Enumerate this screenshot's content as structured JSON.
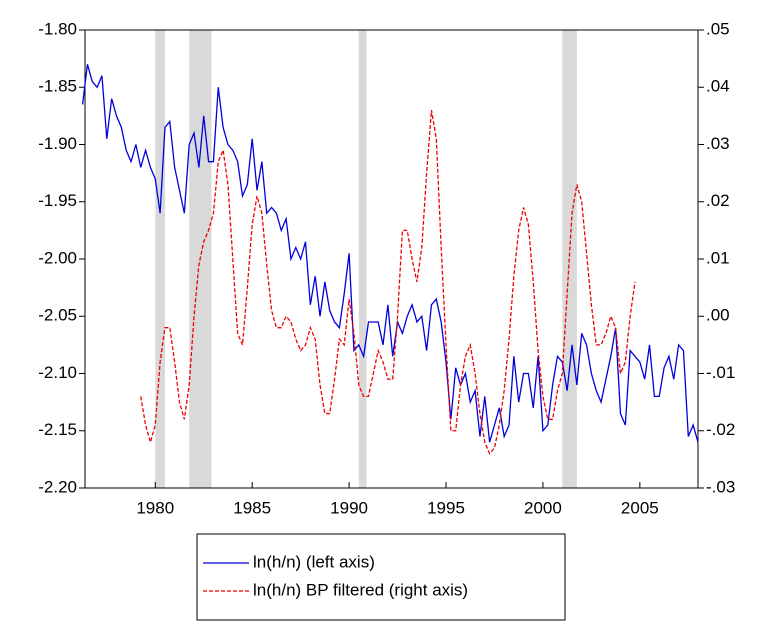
{
  "chart_data": {
    "type": "line",
    "x": [
      1976.25,
      1976.5,
      1976.75,
      1977,
      1977.25,
      1977.5,
      1977.75,
      1978,
      1978.25,
      1978.5,
      1978.75,
      1979,
      1979.25,
      1979.5,
      1979.75,
      1980,
      1980.25,
      1980.5,
      1980.75,
      1981,
      1981.25,
      1981.5,
      1981.75,
      1982,
      1982.25,
      1982.5,
      1982.75,
      1983,
      1983.25,
      1983.5,
      1983.75,
      1984,
      1984.25,
      1984.5,
      1984.75,
      1985,
      1985.25,
      1985.5,
      1985.75,
      1986,
      1986.25,
      1986.5,
      1986.75,
      1987,
      1987.25,
      1987.5,
      1987.75,
      1988,
      1988.25,
      1988.5,
      1988.75,
      1989,
      1989.25,
      1989.5,
      1989.75,
      1990,
      1990.25,
      1990.5,
      1990.75,
      1991,
      1991.25,
      1991.5,
      1991.75,
      1992,
      1992.25,
      1992.5,
      1992.75,
      1993,
      1993.25,
      1993.5,
      1993.75,
      1994,
      1994.25,
      1994.5,
      1994.75,
      1995,
      1995.25,
      1995.5,
      1995.75,
      1996,
      1996.25,
      1996.5,
      1996.75,
      1997,
      1997.25,
      1997.5,
      1997.75,
      1998,
      1998.25,
      1998.5,
      1998.75,
      1999,
      1999.25,
      1999.5,
      1999.75,
      2000,
      2000.25,
      2000.5,
      2000.75,
      2001,
      2001.25,
      2001.5,
      2001.75,
      2002,
      2002.25,
      2002.5,
      2002.75,
      2003,
      2003.25,
      2003.5,
      2003.75,
      2004,
      2004.25,
      2004.5,
      2004.75,
      2005,
      2005.25,
      2005.5,
      2005.75,
      2006,
      2006.25,
      2006.5,
      2006.75,
      2007,
      2007.25,
      2007.5,
      2007.75,
      2008
    ],
    "series": [
      {
        "name": "ln(h/n) (left axis)",
        "color": "#0000dd",
        "dash": false,
        "axis": "y",
        "values": [
          -1.865,
          -1.83,
          -1.845,
          -1.85,
          -1.84,
          -1.895,
          -1.86,
          -1.875,
          -1.885,
          -1.905,
          -1.915,
          -1.9,
          -1.92,
          -1.905,
          -1.92,
          -1.93,
          -1.96,
          -1.885,
          -1.88,
          -1.92,
          -1.94,
          -1.96,
          -1.9,
          -1.89,
          -1.92,
          -1.875,
          -1.915,
          -1.915,
          -1.85,
          -1.885,
          -1.9,
          -1.905,
          -1.915,
          -1.945,
          -1.935,
          -1.895,
          -1.94,
          -1.915,
          -1.96,
          -1.955,
          -1.96,
          -1.975,
          -1.965,
          -2.0,
          -1.99,
          -2.0,
          -1.985,
          -2.04,
          -2.015,
          -2.05,
          -2.02,
          -2.045,
          -2.055,
          -2.06,
          -2.03,
          -1.995,
          -2.08,
          -2.075,
          -2.085,
          -2.055,
          -2.055,
          -2.055,
          -2.075,
          -2.04,
          -2.085,
          -2.055,
          -2.065,
          -2.05,
          -2.04,
          -2.055,
          -2.05,
          -2.08,
          -2.04,
          -2.035,
          -2.055,
          -2.09,
          -2.14,
          -2.095,
          -2.11,
          -2.1,
          -2.125,
          -2.115,
          -2.155,
          -2.12,
          -2.16,
          -2.145,
          -2.13,
          -2.155,
          -2.145,
          -2.085,
          -2.125,
          -2.1,
          -2.1,
          -2.13,
          -2.085,
          -2.15,
          -2.145,
          -2.11,
          -2.085,
          -2.09,
          -2.115,
          -2.075,
          -2.11,
          -2.065,
          -2.075,
          -2.1,
          -2.115,
          -2.125,
          -2.105,
          -2.085,
          -2.06,
          -2.135,
          -2.145,
          -2.08,
          -2.085,
          -2.09,
          -2.105,
          -2.075,
          -2.12,
          -2.12,
          -2.095,
          -2.085,
          -2.105,
          -2.075,
          -2.08,
          -2.155,
          -2.145,
          -2.16
        ]
      },
      {
        "name": "ln(h/n) BP filtered (right axis)",
        "color": "#ee0000",
        "dash": true,
        "axis": "y2",
        "values": [
          null,
          null,
          null,
          null,
          null,
          null,
          null,
          null,
          null,
          null,
          null,
          null,
          -0.014,
          -0.019,
          -0.022,
          -0.019,
          -0.008,
          -0.002,
          -0.002,
          -0.008,
          -0.015,
          -0.018,
          -0.012,
          0.0,
          0.009,
          0.013,
          0.015,
          0.018,
          0.027,
          0.029,
          0.023,
          0.01,
          -0.003,
          -0.005,
          0.005,
          0.016,
          0.021,
          0.018,
          0.009,
          0.001,
          -0.002,
          -0.002,
          0.0,
          -0.001,
          -0.004,
          -0.006,
          -0.005,
          -0.002,
          -0.004,
          -0.012,
          -0.017,
          -0.017,
          -0.011,
          -0.004,
          -0.005,
          0.003,
          -0.003,
          -0.012,
          -0.014,
          -0.014,
          -0.01,
          -0.006,
          -0.008,
          -0.011,
          -0.011,
          0.0,
          0.015,
          0.015,
          0.01,
          0.006,
          0.012,
          0.025,
          0.036,
          0.031,
          0.012,
          -0.005,
          -0.02,
          -0.02,
          -0.012,
          -0.007,
          -0.005,
          -0.01,
          -0.017,
          -0.022,
          -0.024,
          -0.023,
          -0.019,
          -0.013,
          -0.004,
          0.007,
          0.015,
          0.019,
          0.016,
          0.006,
          -0.006,
          -0.014,
          -0.018,
          -0.018,
          -0.013,
          -0.01,
          0.004,
          0.018,
          0.023,
          0.02,
          0.011,
          0.002,
          -0.005,
          -0.005,
          -0.003,
          0.0,
          -0.002,
          -0.01,
          -0.008,
          0.0,
          0.006,
          null,
          null,
          null,
          null,
          null,
          null,
          null,
          null,
          null,
          null,
          null,
          null,
          null
        ]
      }
    ],
    "shading": [
      [
        1980.0,
        1980.5
      ],
      [
        1981.75,
        1982.9
      ],
      [
        1990.5,
        1990.9
      ],
      [
        2001.0,
        2001.75
      ]
    ],
    "shading_color": "#d9d9d9",
    "xlim": [
      1976.375,
      2008.0
    ],
    "xticks": [
      1980,
      1985,
      1990,
      1995,
      2000,
      2005
    ],
    "ylim": [
      -2.2,
      -1.8
    ],
    "yticks": [
      {
        "value": -2.2,
        "label": "-2.20"
      },
      {
        "value": -2.15,
        "label": "-2.15"
      },
      {
        "value": -2.1,
        "label": "-2.10"
      },
      {
        "value": -2.05,
        "label": "-2.05"
      },
      {
        "value": -2.0,
        "label": "-2.00"
      },
      {
        "value": -1.95,
        "label": "-1.95"
      },
      {
        "value": -1.9,
        "label": "-1.90"
      },
      {
        "value": -1.85,
        "label": "-1.85"
      },
      {
        "value": -1.8,
        "label": "-1.80"
      }
    ],
    "y2lim": [
      -0.03,
      0.05
    ],
    "y2ticks": [
      {
        "value": -0.03,
        "label": "-.03"
      },
      {
        "value": -0.02,
        "label": "-.02"
      },
      {
        "value": -0.01,
        "label": "-.01"
      },
      {
        "value": 0.0,
        "label": ".00"
      },
      {
        "value": 0.01,
        "label": ".01"
      },
      {
        "value": 0.02,
        "label": ".02"
      },
      {
        "value": 0.03,
        "label": ".03"
      },
      {
        "value": 0.04,
        "label": ".04"
      },
      {
        "value": 0.05,
        "label": ".05"
      }
    ],
    "legend": "bottom"
  }
}
